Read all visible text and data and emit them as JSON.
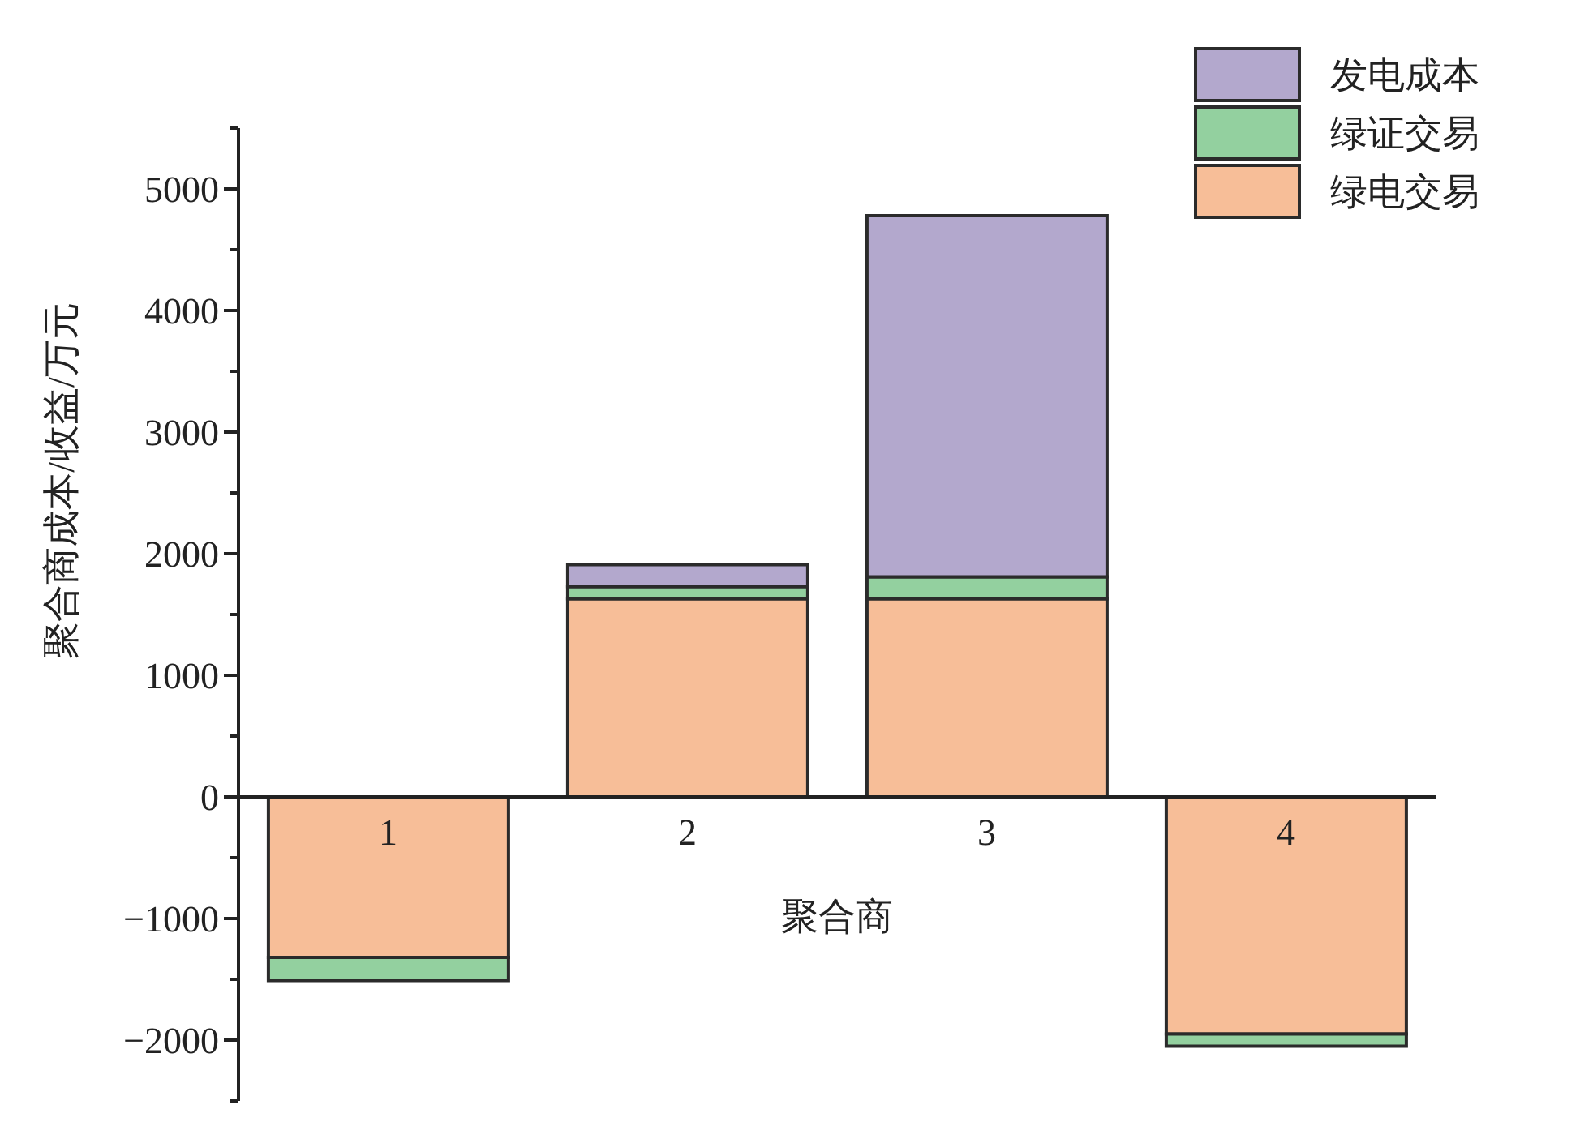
{
  "chart_data": {
    "type": "bar",
    "stacked": true,
    "xlabel": "聚合商",
    "ylabel": "聚合商成本/收益/万元",
    "categories": [
      "1",
      "2",
      "3",
      "4"
    ],
    "series": [
      {
        "name": "绿电交易",
        "color": "#f7be98",
        "values": [
          -1320,
          1630,
          1630,
          -1950
        ]
      },
      {
        "name": "绿证交易",
        "color": "#93d09f",
        "values": [
          -190,
          100,
          180,
          -100
        ]
      },
      {
        "name": "发电成本",
        "color": "#b3a8cd",
        "values": [
          null,
          180,
          2970,
          null
        ]
      }
    ],
    "ylim": [
      -2500,
      5500
    ],
    "yticks": [
      {
        "value": -2500,
        "label": null
      },
      -2000,
      {
        "value": -1500,
        "label": null
      },
      -1000,
      {
        "value": -500,
        "label": null
      },
      0,
      {
        "value": 500,
        "label": null
      },
      1000,
      {
        "value": 1500,
        "label": null
      },
      2000,
      {
        "value": 2500,
        "label": null
      },
      3000,
      {
        "value": 3500,
        "label": null
      },
      4000,
      {
        "value": 4500,
        "label": null
      },
      5000,
      {
        "value": 5500,
        "label": null
      }
    ],
    "legend": "top right",
    "grid": false
  }
}
